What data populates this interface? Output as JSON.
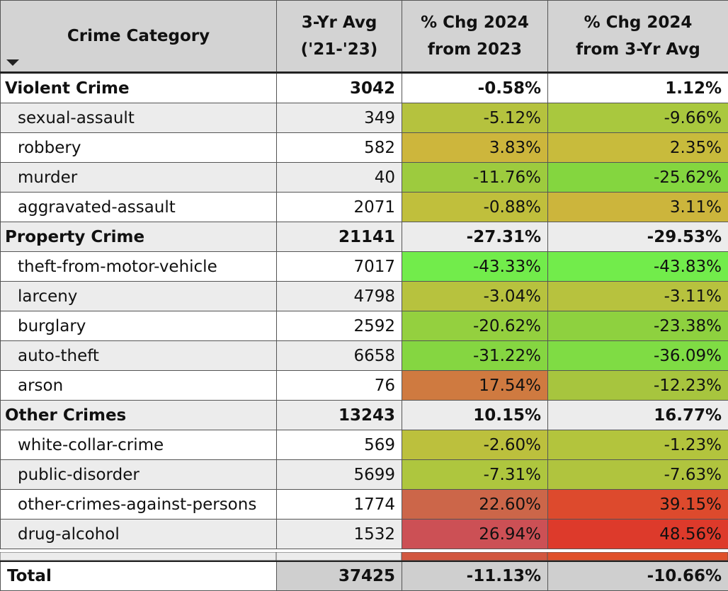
{
  "table": {
    "header": [
      "Crime Category",
      "3-Yr Avg\n('21-'23)",
      "% Chg 2024\nfrom 2023",
      "% Chg 2024\nfrom 3-Yr Avg"
    ],
    "rows": [
      {
        "cells": [
          "Violent Crime",
          "3042",
          "-0.58%",
          "1.12%"
        ],
        "group": true
      },
      {
        "cells": [
          "sexual-assault",
          "349",
          "-5.12%",
          "-9.66%"
        ],
        "colors": [
          "#b5c23e",
          "#a9c83e"
        ]
      },
      {
        "cells": [
          "robbery",
          "582",
          "3.83%",
          "2.35%"
        ],
        "colors": [
          "#cdb63c",
          "#c8bb3c"
        ]
      },
      {
        "cells": [
          "murder",
          "40",
          "-11.76%",
          "-25.62%"
        ],
        "colors": [
          "#9dcb3e",
          "#84d63f"
        ]
      },
      {
        "cells": [
          "aggravated-assault",
          "2071",
          "-0.88%",
          "3.11%"
        ],
        "colors": [
          "#c0bf3c",
          "#ccb53c"
        ]
      },
      {
        "cells": [
          "Property Crime",
          "21141",
          "-27.31%",
          "-29.53%"
        ],
        "group": true
      },
      {
        "cells": [
          "theft-from-motor-vehicle",
          "7017",
          "-43.33%",
          "-43.83%"
        ],
        "colors": [
          "#72ec4b",
          "#72ec4b"
        ]
      },
      {
        "cells": [
          "larceny",
          "4798",
          "-3.04%",
          "-3.11%"
        ],
        "colors": [
          "#b7c23e",
          "#b7c23e"
        ]
      },
      {
        "cells": [
          "burglary",
          "2592",
          "-20.62%",
          "-23.38%"
        ],
        "colors": [
          "#94d03f",
          "#8ed13f"
        ]
      },
      {
        "cells": [
          "auto-theft",
          "6658",
          "-31.22%",
          "-36.09%"
        ],
        "colors": [
          "#85d641",
          "#7fdc44"
        ]
      },
      {
        "cells": [
          "arson",
          "76",
          "17.54%",
          "-12.23%"
        ],
        "colors": [
          "#cf7a40",
          "#a7c53e"
        ]
      },
      {
        "cells": [
          "Other Crimes",
          "13243",
          "10.15%",
          "16.77%"
        ],
        "group": true
      },
      {
        "cells": [
          "white-collar-crime",
          "569",
          "-2.60%",
          "-1.23%"
        ],
        "colors": [
          "#bcc03d",
          "#b3c43d"
        ]
      },
      {
        "cells": [
          "public-disorder",
          "5699",
          "-7.31%",
          "-7.63%"
        ],
        "colors": [
          "#aec63e",
          "#b0c43e"
        ]
      },
      {
        "cells": [
          "other-crimes-against-persons",
          "1774",
          "22.60%",
          "39.15%"
        ],
        "colors": [
          "#cc6649",
          "#dd4a2d"
        ]
      },
      {
        "cells": [
          "drug-alcohol",
          "1532",
          "26.94%",
          "48.56%"
        ],
        "colors": [
          "#cc5055",
          "#dd3a2b"
        ]
      }
    ],
    "total": [
      "Total",
      "37425",
      "-11.13%",
      "-10.66%"
    ]
  }
}
